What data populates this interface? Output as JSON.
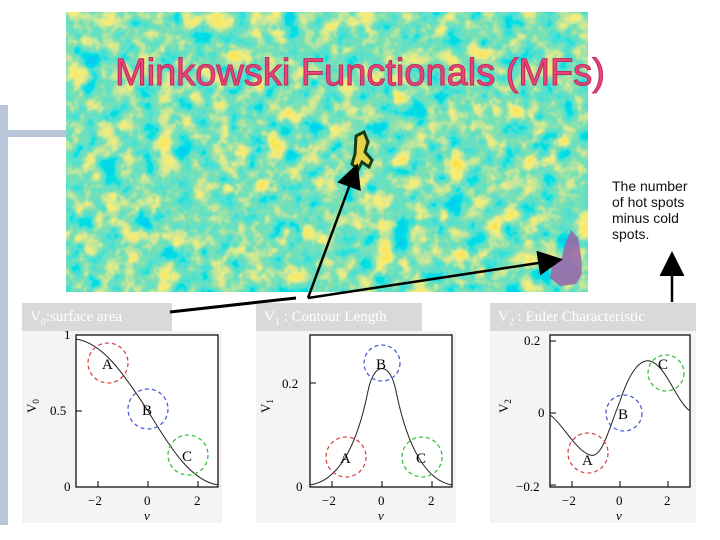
{
  "title": "Minkowski Functionals (MFs)",
  "note": "The number of hot spots minus cold spots.",
  "panels": [
    {
      "label_main": "V",
      "label_sub": "0",
      "label_rest": ":surface area",
      "ylabel": "V",
      "ylabel_sub": "0",
      "xlabel": "ν",
      "xticks": [
        "−2",
        "0",
        "2"
      ],
      "yticks": [
        "1",
        "0.5",
        "0"
      ],
      "circles": [
        "A",
        "B",
        "C"
      ]
    },
    {
      "label_main": "V",
      "label_sub": "1",
      "label_rest": " : Contour Length",
      "ylabel": "V",
      "ylabel_sub": "1",
      "xlabel": "ν",
      "xticks": [
        "−2",
        "0",
        "2"
      ],
      "yticks": [
        "0.2",
        "0"
      ],
      "circles": [
        "B",
        "A",
        "C"
      ]
    },
    {
      "label_main": "V",
      "label_sub": "2",
      "label_rest": " : Euler Characteristic",
      "ylabel": "V",
      "ylabel_sub": "2",
      "xlabel": "ν",
      "xticks": [
        "−2",
        "0",
        "2"
      ],
      "yticks": [
        "0.2",
        "0",
        "−0.2"
      ],
      "circles": [
        "C",
        "B",
        "A"
      ]
    }
  ],
  "colors": {
    "title": "#e8457a",
    "circle_a": "#d94848",
    "circle_b": "#4a5fd8",
    "circle_c": "#3cbf3c"
  }
}
